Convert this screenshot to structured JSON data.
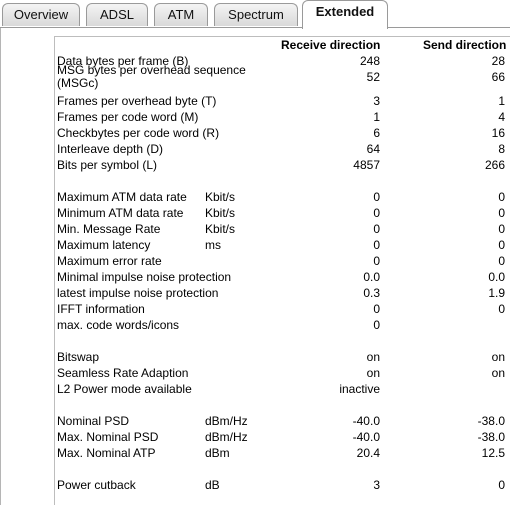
{
  "tabs": [
    {
      "label": "Overview",
      "active": false
    },
    {
      "label": "ADSL",
      "active": false
    },
    {
      "label": "ATM",
      "active": false
    },
    {
      "label": "Spectrum",
      "active": false
    },
    {
      "label": "Extended",
      "active": true
    }
  ],
  "table": {
    "header_receive": "Receive direction",
    "header_send": "Send direction",
    "rows": [
      {
        "label": "Data bytes per frame (B)",
        "unit": "",
        "rx": "248",
        "tx": "28"
      },
      {
        "label": "MSG bytes per overhead sequence (MSGc)",
        "unit": "",
        "rx": "52",
        "tx": "66"
      },
      {
        "label": "Frames per overhead byte (T)",
        "unit": "",
        "rx": "3",
        "tx": "1"
      },
      {
        "label": "Frames per code word (M)",
        "unit": "",
        "rx": "1",
        "tx": "4"
      },
      {
        "label": "Checkbytes per code word (R)",
        "unit": "",
        "rx": "6",
        "tx": "16"
      },
      {
        "label": "Interleave depth (D)",
        "unit": "",
        "rx": "64",
        "tx": "8"
      },
      {
        "label": "Bits per symbol (L)",
        "unit": "",
        "rx": "4857",
        "tx": "266"
      },
      {
        "label": "Maximum ATM data rate",
        "unit": "Kbit/s",
        "rx": "0",
        "tx": "0"
      },
      {
        "label": "Minimum ATM data rate",
        "unit": "Kbit/s",
        "rx": "0",
        "tx": "0"
      },
      {
        "label": "Min. Message Rate",
        "unit": "Kbit/s",
        "rx": "0",
        "tx": "0"
      },
      {
        "label": "Maximum latency",
        "unit": "ms",
        "rx": "0",
        "tx": "0"
      },
      {
        "label": "Maximum error rate",
        "unit": "",
        "rx": "0",
        "tx": "0"
      },
      {
        "label": "Minimal impulse noise protection",
        "unit": "",
        "rx": "0.0",
        "tx": "0.0"
      },
      {
        "label": "latest impulse noise protection",
        "unit": "",
        "rx": "0.3",
        "tx": "1.9"
      },
      {
        "label": "IFFT information",
        "unit": "",
        "rx": "0",
        "tx": "0"
      },
      {
        "label": "max. code words/icons",
        "unit": "",
        "rx": "0",
        "tx": ""
      },
      {
        "label": "Bitswap",
        "unit": "",
        "rx": "on",
        "tx": "on"
      },
      {
        "label": "Seamless Rate Adaption",
        "unit": "",
        "rx": "on",
        "tx": "on"
      },
      {
        "label": "L2 Power mode available",
        "unit": "",
        "rx": "inactive",
        "tx": ""
      },
      {
        "label": "Nominal PSD",
        "unit": "dBm/Hz",
        "rx": "-40.0",
        "tx": "-38.0"
      },
      {
        "label": "Max. Nominal PSD",
        "unit": "dBm/Hz",
        "rx": "-40.0",
        "tx": "-38.0"
      },
      {
        "label": "Max. Nominal ATP",
        "unit": "dBm",
        "rx": "20.4",
        "tx": "12.5"
      },
      {
        "label": "Power cutback",
        "unit": "dB",
        "rx": "3",
        "tx": "0"
      }
    ]
  }
}
